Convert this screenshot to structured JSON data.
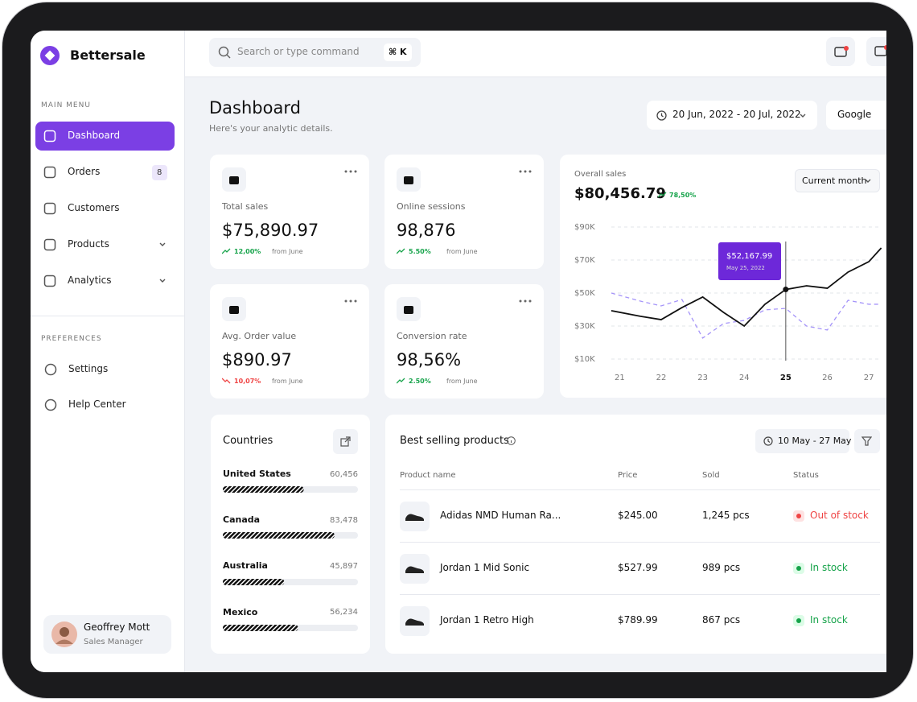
{
  "sidebar": {
    "brand": "Bettersale",
    "main_menu_label": "MAIN MENU",
    "menu": [
      {
        "label": "Dashboard",
        "active": true
      },
      {
        "label": "Orders",
        "badge": 8
      },
      {
        "label": "Customers"
      },
      {
        "label": "Products",
        "submenu": true
      },
      {
        "label": "Analytics",
        "submenu": true
      }
    ],
    "preferences_label": "PREFERENCES",
    "preferences": [
      {
        "label": "Settings"
      },
      {
        "label": "Help Center"
      }
    ],
    "user": {
      "name": "Geoffrey Mott",
      "role": "Sales Manager"
    }
  },
  "topbar": {
    "search_placeholder": "Search or type command",
    "shortcut": "⌘ K"
  },
  "header": {
    "title": "Dashboard",
    "subtitle": "Here's your analytic details.",
    "date_range": "20 Jun, 2022 - 20 Jul, 2022",
    "source": "Google"
  },
  "stats": [
    {
      "label": "Total sales",
      "value": "$75,890.97",
      "change": "12,00%",
      "change_suffix": "from June",
      "trend": "up"
    },
    {
      "label": "Online sessions",
      "value": "98,876",
      "change": "5.50%",
      "change_suffix": "from June",
      "trend": "up"
    },
    {
      "label": "Avg. Order value",
      "value": "$890.97",
      "change": "10,07%",
      "change_suffix": "from June",
      "trend": "down"
    },
    {
      "label": "Conversion rate",
      "value": "98,56%",
      "change": "2.50%",
      "change_suffix": "from June",
      "trend": "up"
    }
  ],
  "chart_data": {
    "type": "line",
    "title": "Overall sales",
    "total": "$80,456.79",
    "change": "78,50%",
    "period": "Current month",
    "x": [
      20.8,
      21.5,
      22,
      22.5,
      23,
      23.5,
      24,
      24.5,
      25,
      25.5,
      26,
      26.5,
      27,
      27.3
    ],
    "xlim": [
      20.8,
      27.3
    ],
    "xticks": [
      21,
      22,
      23,
      24,
      25,
      26,
      27
    ],
    "ylim": [
      10000,
      90000
    ],
    "yticks": [
      {
        "value": 10000,
        "label": "$10K"
      },
      {
        "value": 30000,
        "label": "$30K"
      },
      {
        "value": 50000,
        "label": "$50K"
      },
      {
        "value": 70000,
        "label": "$70K"
      },
      {
        "value": 90000,
        "label": "$90K"
      }
    ],
    "grid": true,
    "series": [
      {
        "color": "#a594f9",
        "dashed": true,
        "values": [
          50000,
          45100,
          42200,
          46100,
          22700,
          31500,
          33400,
          39800,
          40700,
          30000,
          27600,
          45600,
          43200,
          43200
        ]
      },
      {
        "color": "#111111",
        "values": [
          39300,
          35900,
          33900,
          41200,
          47600,
          38300,
          30000,
          43200,
          52168,
          54400,
          52900,
          62700,
          69000,
          77300
        ]
      }
    ],
    "tooltip": {
      "x": 25,
      "value": "$52,167.99",
      "date": "May 25, 2022"
    }
  },
  "countries": {
    "title": "Countries",
    "items": [
      {
        "name": "United States",
        "value": 60456,
        "value_label": "60,456"
      },
      {
        "name": "Canada",
        "value": 83478,
        "value_label": "83,478"
      },
      {
        "name": "Australia",
        "value": 45897,
        "value_label": "45,897"
      },
      {
        "name": "Mexico",
        "value": 56234,
        "value_label": "56,234"
      }
    ]
  },
  "products": {
    "title": "Best selling products",
    "date_range": "10 May - 27 May",
    "columns": [
      "Product name",
      "Price",
      "Sold",
      "Status"
    ],
    "rows": [
      {
        "name": "Adidas NMD Human Ra...",
        "price": "$245.00",
        "sold": "1,245 pcs",
        "status": "Out of stock",
        "available": false
      },
      {
        "name": "Jordan 1 Mid Sonic",
        "price": "$527.99",
        "sold": "989 pcs",
        "status": "In stock",
        "available": true
      },
      {
        "name": "Jordan 1 Retro High",
        "price": "$789.99",
        "sold": "867 pcs",
        "status": "In stock",
        "available": true
      }
    ]
  }
}
